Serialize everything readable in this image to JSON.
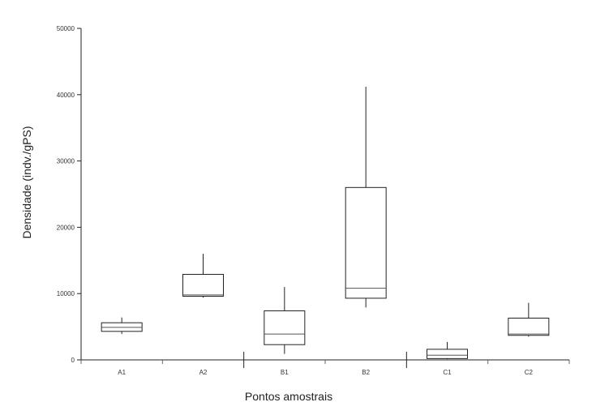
{
  "chart_data": {
    "type": "box",
    "title": "",
    "xlabel": "Pontos amostrais",
    "ylabel": "Densidade (indv./gPS)",
    "ylim": [
      0,
      50000
    ],
    "yticks": [
      0,
      10000,
      20000,
      30000,
      40000,
      50000
    ],
    "ytick_labels": [
      "0",
      "10000",
      "20000",
      "30000",
      "40000",
      "50000"
    ],
    "grid": false,
    "categories": [
      "A1",
      "A2",
      "B1",
      "B2",
      "C1",
      "C2"
    ],
    "boxes": [
      {
        "category": "A1",
        "min": 3900,
        "q1": 4300,
        "median": 4900,
        "q3": 5600,
        "max": 6400
      },
      {
        "category": "A2",
        "min": 9400,
        "q1": 9600,
        "median": 9800,
        "q3": 12900,
        "max": 16000
      },
      {
        "category": "B1",
        "min": 900,
        "q1": 2300,
        "median": 3900,
        "q3": 7400,
        "max": 11000
      },
      {
        "category": "B2",
        "min": 7900,
        "q1": 9300,
        "median": 10800,
        "q3": 26000,
        "max": 41200
      },
      {
        "category": "C1",
        "min": 100,
        "q1": 200,
        "median": 700,
        "q3": 1600,
        "max": 2700
      },
      {
        "category": "C2",
        "min": 3500,
        "q1": 3700,
        "median": 3900,
        "q3": 6300,
        "max": 8600
      }
    ],
    "group_separators_after": [
      "A2",
      "B2"
    ]
  }
}
